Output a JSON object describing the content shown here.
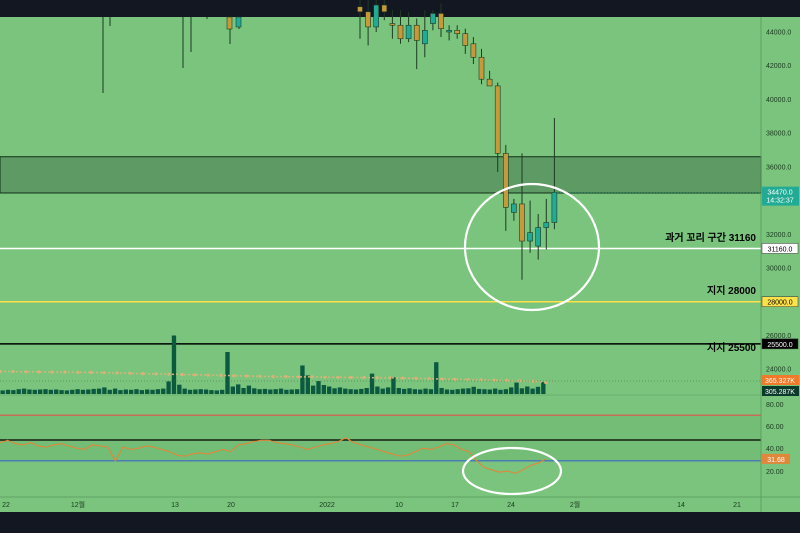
{
  "colors": {
    "background": "#7ac47d",
    "chrome": "#131722",
    "candle_up": "#22ab94",
    "candle_down": "#c8993a",
    "wick": "#1e3a24",
    "zone_fill": "#5e9a63",
    "ma_line": "#d8b377",
    "volume_bar": "#0b5a40",
    "rsi_line": "#e0873a",
    "rsi_upper": "#e0564e",
    "rsi_lower": "#3f66c8",
    "support_yellow": "#ffe24a",
    "highlight_circle": "#ffffff"
  },
  "chart_data": {
    "type": "candlestick",
    "price_axis": {
      "ticks": [
        "44000.0",
        "42000.0",
        "40000.0",
        "38000.0",
        "36000.0",
        "32000.0",
        "30000.0",
        "26000.0",
        "24000.0"
      ],
      "range": [
        22000,
        45000
      ]
    },
    "time_axis": {
      "ticks": [
        "22",
        "12월",
        "13",
        "20",
        "2022",
        "10",
        "17",
        "24",
        "2월",
        "14",
        "21"
      ]
    },
    "candles": [
      {
        "o": 45500,
        "h": 46200,
        "l": 43600,
        "c": 45200
      },
      {
        "o": 45200,
        "h": 45900,
        "l": 43200,
        "c": 44300
      },
      {
        "o": 44300,
        "h": 45900,
        "l": 44000,
        "c": 45600
      },
      {
        "o": 45600,
        "h": 45900,
        "l": 44700,
        "c": 45200
      },
      {
        "o": 44500,
        "h": 45300,
        "l": 43600,
        "c": 44400
      },
      {
        "o": 44400,
        "h": 45300,
        "l": 43300,
        "c": 43600
      },
      {
        "o": 43600,
        "h": 45200,
        "l": 43400,
        "c": 44400
      },
      {
        "o": 44400,
        "h": 44800,
        "l": 41800,
        "c": 43500
      },
      {
        "o": 43300,
        "h": 45300,
        "l": 42500,
        "c": 44100
      },
      {
        "o": 44500,
        "h": 45300,
        "l": 44100,
        "c": 45100
      },
      {
        "o": 45100,
        "h": 45700,
        "l": 43700,
        "c": 44200
      },
      {
        "o": 44000,
        "h": 44400,
        "l": 43500,
        "c": 44100
      },
      {
        "o": 44100,
        "h": 44400,
        "l": 43600,
        "c": 43900
      },
      {
        "o": 43900,
        "h": 44200,
        "l": 42700,
        "c": 43200
      },
      {
        "o": 43300,
        "h": 43700,
        "l": 42100,
        "c": 42500
      },
      {
        "o": 42500,
        "h": 43000,
        "l": 40900,
        "c": 41200
      },
      {
        "o": 41200,
        "h": 41700,
        "l": 40800,
        "c": 40800
      },
      {
        "o": 40800,
        "h": 41000,
        "l": 35700,
        "c": 36800
      },
      {
        "o": 36800,
        "h": 37300,
        "l": 32200,
        "c": 33600
      },
      {
        "o": 33300,
        "h": 34100,
        "l": 32800,
        "c": 33800
      },
      {
        "o": 33800,
        "h": 36800,
        "l": 29300,
        "c": 31600
      },
      {
        "o": 31600,
        "h": 34000,
        "l": 30900,
        "c": 32100
      },
      {
        "o": 31300,
        "h": 33200,
        "l": 30500,
        "c": 32400
      },
      {
        "o": 32400,
        "h": 34100,
        "l": 31100,
        "c": 32700
      },
      {
        "o": 32700,
        "h": 38900,
        "l": 32300,
        "c": 34470
      }
    ],
    "zone": {
      "low": 34450,
      "high": 36600
    },
    "levels": [
      {
        "value": 31160,
        "label": "과거 꼬리 구간 31160",
        "tag": "31160.0",
        "color": "#ffffff"
      },
      {
        "value": 28000,
        "label": "지지 28000",
        "tag": "28000.0",
        "color": "#ffe24a"
      },
      {
        "value": 25500,
        "label": "지지 25500",
        "tag": "25500.0",
        "color": "#000000"
      }
    ],
    "current_price": {
      "value": 34470,
      "label": "34470.0",
      "countdown": "14:32:37"
    },
    "volume": {
      "ma_label": "365.327K",
      "last_label": "305.287K",
      "values": [
        1.2,
        1.4,
        1.3,
        1.6,
        1.8,
        1.5,
        1.4,
        1.5,
        1.6,
        1.4,
        1.5,
        1.3,
        1.2,
        1.4,
        1.6,
        1.4,
        1.5,
        1.7,
        1.8,
        2.2,
        1.4,
        1.8,
        1.3,
        1.5,
        1.4,
        1.6,
        1.3,
        1.5,
        1.4,
        1.6,
        1.8,
        4.2,
        19.5,
        3.1,
        1.8,
        1.4,
        1.5,
        1.6,
        1.5,
        1.3,
        1.2,
        1.4,
        14.0,
        2.5,
        3.2,
        2.0,
        2.8,
        1.9,
        1.6,
        1.7,
        1.5,
        1.6,
        1.8,
        1.4,
        1.5,
        1.6,
        9.5,
        6.2,
        2.8,
        4.3,
        3.0,
        2.5,
        1.9,
        2.2,
        1.8,
        1.6,
        1.5,
        1.7,
        2.0,
        6.8,
        2.5,
        1.8,
        2.2,
        5.6,
        2.0,
        1.7,
        1.9,
        1.6,
        1.5,
        1.8,
        1.6,
        10.6,
        2.0,
        1.5,
        1.4,
        1.6,
        1.8,
        1.9,
        2.4,
        1.7,
        1.6,
        1.5,
        1.8,
        1.4,
        1.6,
        2.2,
        3.8,
        1.9,
        2.5,
        1.8,
        2.4,
        4.0
      ],
      "ma": [
        7.5,
        7.5,
        7.4,
        7.4,
        7.3,
        7.3,
        7.2,
        7.2,
        7.1,
        7.0,
        6.9,
        6.8,
        6.7,
        6.6,
        6.5,
        6.4,
        6.3,
        6.2,
        6.1,
        6.0,
        5.9,
        5.8,
        5.8,
        5.7,
        5.7,
        5.6,
        5.6,
        5.5,
        5.5,
        5.4,
        5.4,
        5.3,
        5.2,
        5.1,
        5.0,
        4.9,
        4.8,
        4.7,
        4.6,
        4.5,
        4.4,
        4.3,
        3.8
      ],
      "max": 20
    },
    "rsi": {
      "value_label": "31.68",
      "ticks": [
        "80.00",
        "60.00",
        "40.00",
        "20.00"
      ],
      "upper": 70,
      "lower": 30,
      "mid": 50,
      "values": [
        46,
        48,
        45,
        44,
        46,
        43,
        42,
        44,
        45,
        43,
        41,
        40,
        44,
        43,
        42,
        30,
        42,
        40,
        41,
        43,
        42,
        40,
        38,
        35,
        34,
        36,
        37,
        36,
        38,
        40,
        38,
        44,
        45,
        47,
        48,
        48,
        46,
        45,
        44,
        42,
        40,
        42,
        44,
        45,
        47,
        50,
        46,
        44,
        42,
        40,
        38,
        36,
        34,
        35,
        38,
        41,
        40,
        42,
        45,
        44,
        40,
        38,
        30,
        24,
        22,
        20,
        21,
        19,
        22,
        26,
        28,
        31.68
      ]
    }
  }
}
